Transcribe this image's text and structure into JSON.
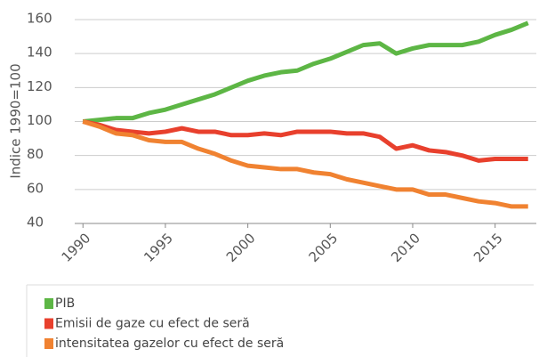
{
  "chart_data": {
    "type": "line",
    "y_label": "Indice 1990=100",
    "x": [
      1990,
      1991,
      1992,
      1993,
      1994,
      1995,
      1996,
      1997,
      1998,
      1999,
      2000,
      2001,
      2002,
      2003,
      2004,
      2005,
      2006,
      2007,
      2008,
      2009,
      2010,
      2011,
      2012,
      2013,
      2014,
      2015,
      2016,
      2017
    ],
    "series": [
      {
        "name": "PIB",
        "color": "#5db645",
        "values": [
          100,
          101,
          102,
          102,
          105,
          107,
          110,
          113,
          116,
          120,
          124,
          127,
          129,
          130,
          134,
          137,
          141,
          145,
          146,
          140,
          143,
          145,
          145,
          145,
          147,
          151,
          154,
          158
        ]
      },
      {
        "name": "Emisii de gaze cu efect de seră",
        "color": "#e8402d",
        "values": [
          100,
          98,
          95,
          94,
          93,
          94,
          96,
          94,
          94,
          92,
          92,
          93,
          92,
          94,
          94,
          94,
          93,
          93,
          91,
          84,
          86,
          83,
          82,
          80,
          77,
          78,
          78,
          78
        ]
      },
      {
        "name": "intensitatea gazelor cu efect de seră",
        "color": "#f08231",
        "values": [
          100,
          97,
          93,
          92,
          89,
          88,
          88,
          84,
          81,
          77,
          74,
          73,
          72,
          72,
          70,
          69,
          66,
          64,
          62,
          60,
          60,
          57,
          57,
          55,
          53,
          52,
          50,
          50
        ]
      }
    ],
    "xlim": [
      1989.5,
      2017.5
    ],
    "xticks": [
      1990,
      1995,
      2000,
      2005,
      2010,
      2015
    ],
    "ylim": [
      40,
      160
    ],
    "yticks": [
      40,
      60,
      80,
      100,
      120,
      140,
      160
    ],
    "grid": true,
    "legend": "bottom"
  }
}
